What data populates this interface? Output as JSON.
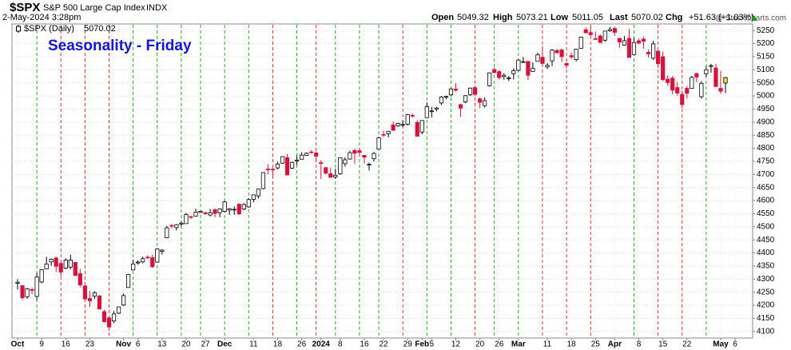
{
  "chart_data": {
    "type": "candlestick",
    "symbol": "$SPX",
    "name": "S&P 500 Large Cap Index",
    "exchange": "INDX",
    "timestamp": "2-May-2024 3:28pm",
    "watermark": "@ StockCharts.com",
    "title": "Seasonality - Friday",
    "legend_label": "$SPX (Daily)",
    "header_labels": [
      "Open",
      "High",
      "Low",
      "Last",
      "Chg"
    ],
    "change": "+51.63 (+1.03%)",
    "x": [
      "Oct 2",
      "Oct 3",
      "Oct 4",
      "Oct 5",
      "Oct 6",
      "Oct 9",
      "Oct 10",
      "Oct 11",
      "Oct 12",
      "Oct 13",
      "Oct 16",
      "Oct 17",
      "Oct 18",
      "Oct 19",
      "Oct 20",
      "Oct 23",
      "Oct 24",
      "Oct 25",
      "Oct 26",
      "Oct 27",
      "Oct 30",
      "Oct 31",
      "Nov 1",
      "Nov 2",
      "Nov 3",
      "Nov 6",
      "Nov 7",
      "Nov 8",
      "Nov 9",
      "Nov 10",
      "Nov 13",
      "Nov 14",
      "Nov 15",
      "Nov 16",
      "Nov 17",
      "Nov 20",
      "Nov 21",
      "Nov 22",
      "Nov 24",
      "Nov 27",
      "Nov 28",
      "Nov 29",
      "Nov 30",
      "Dec 1",
      "Dec 4",
      "Dec 5",
      "Dec 6",
      "Dec 7",
      "Dec 8",
      "Dec 11",
      "Dec 12",
      "Dec 13",
      "Dec 14",
      "Dec 15",
      "Dec 18",
      "Dec 19",
      "Dec 20",
      "Dec 21",
      "Dec 22",
      "Dec 26",
      "Dec 27",
      "Dec 28",
      "Dec 29",
      "Jan 2",
      "Jan 3",
      "Jan 4",
      "Jan 5",
      "Jan 8",
      "Jan 9",
      "Jan 10",
      "Jan 11",
      "Jan 12",
      "Jan 16",
      "Jan 17",
      "Jan 18",
      "Jan 19",
      "Jan 22",
      "Jan 23",
      "Jan 24",
      "Jan 25",
      "Jan 26",
      "Jan 29",
      "Jan 30",
      "Jan 31",
      "Feb 1",
      "Feb 2",
      "Feb 5",
      "Feb 6",
      "Feb 7",
      "Feb 8",
      "Feb 9",
      "Feb 12",
      "Feb 13",
      "Feb 14",
      "Feb 15",
      "Feb 16",
      "Feb 20",
      "Feb 21",
      "Feb 22",
      "Feb 23",
      "Feb 26",
      "Feb 27",
      "Feb 28",
      "Feb 29",
      "Mar 1",
      "Mar 4",
      "Mar 5",
      "Mar 6",
      "Mar 7",
      "Mar 8",
      "Mar 11",
      "Mar 12",
      "Mar 13",
      "Mar 14",
      "Mar 15",
      "Mar 18",
      "Mar 19",
      "Mar 20",
      "Mar 21",
      "Mar 22",
      "Mar 25",
      "Mar 26",
      "Mar 27",
      "Mar 28",
      "Apr 1",
      "Apr 2",
      "Apr 3",
      "Apr 4",
      "Apr 5",
      "Apr 8",
      "Apr 9",
      "Apr 10",
      "Apr 11",
      "Apr 12",
      "Apr 15",
      "Apr 16",
      "Apr 17",
      "Apr 18",
      "Apr 19",
      "Apr 22",
      "Apr 23",
      "Apr 24",
      "Apr 25",
      "Apr 26",
      "Apr 29",
      "Apr 30",
      "May 1",
      "May 2"
    ],
    "open": [
      4284,
      4275,
      4233,
      4260,
      4234,
      4289,
      4339,
      4366,
      4381,
      4360,
      4342,
      4346,
      4364,
      4321,
      4274,
      4226,
      4235,
      4236,
      4176,
      4152,
      4140,
      4170,
      4201,
      4268,
      4335,
      4364,
      4366,
      4384,
      4382,
      4365,
      4406,
      4458,
      4505,
      4497,
      4510,
      4512,
      4539,
      4541,
      4555,
      4554,
      4545,
      4565,
      4554,
      4559,
      4564,
      4566,
      4586,
      4568,
      4576,
      4605,
      4618,
      4646,
      4721,
      4720,
      4725,
      4743,
      4764,
      4724,
      4754,
      4758,
      4773,
      4786,
      4782,
      4745,
      4726,
      4703,
      4690,
      4703,
      4741,
      4759,
      4792,
      4791,
      4773,
      4739,
      4760,
      4797,
      4853,
      4856,
      4889,
      4886,
      4888,
      4892,
      4926,
      4899,
      4862,
      4917,
      4942,
      4950,
      4973,
      4996,
      5004,
      5026,
      4967,
      4977,
      5004,
      5032,
      4989,
      4963,
      5039,
      5101,
      5093,
      5074,
      5068,
      5085,
      5098,
      5131,
      5132,
      5094,
      5132,
      5148,
      5111,
      5134,
      5174,
      5176,
      5124,
      5154,
      5139,
      5182,
      5253,
      5242,
      5219,
      5229,
      5213,
      5249,
      5258,
      5220,
      5194,
      5220,
      5158,
      5211,
      5217,
      5167,
      5144,
      5171,
      5150,
      5064,
      5068,
      5032,
      5006,
      5029,
      5029,
      5085,
      4997,
      5085,
      5114,
      5107,
      5029,
      5049.32
    ],
    "high": [
      4300,
      4277,
      4266,
      4268,
      4324,
      4338,
      4385,
      4379,
      4385,
      4367,
      4380,
      4393,
      4366,
      4339,
      4277,
      4255,
      4254,
      4239,
      4183,
      4156,
      4178,
      4194,
      4245,
      4320,
      4373,
      4372,
      4386,
      4391,
      4393,
      4418,
      4414,
      4504,
      4512,
      4511,
      4521,
      4553,
      4542,
      4569,
      4560,
      4557,
      4568,
      4570,
      4570,
      4599,
      4572,
      4578,
      4590,
      4590,
      4610,
      4623,
      4645,
      4709,
      4739,
      4726,
      4749,
      4769,
      4778,
      4749,
      4772,
      4785,
      4784,
      4793,
      4788,
      4755,
      4729,
      4726,
      4722,
      4765,
      4766,
      4791,
      4798,
      4802,
      4773,
      4745,
      4786,
      4843,
      4868,
      4866,
      4903,
      4898,
      4906,
      4931,
      4932,
      4907,
      4907,
      4976,
      4958,
      4958,
      5000,
      5001,
      5030,
      5049,
      4970,
      5003,
      5032,
      5039,
      4994,
      4994,
      5090,
      5108,
      5098,
      5087,
      5076,
      5105,
      5141,
      5149,
      5133,
      5128,
      5165,
      5190,
      5125,
      5179,
      5179,
      5180,
      5128,
      5166,
      5180,
      5227,
      5262,
      5264,
      5246,
      5235,
      5249,
      5264,
      5264,
      5221,
      5229,
      5256,
      5222,
      5219,
      5225,
      5178,
      5211,
      5175,
      5169,
      5079,
      5077,
      5052,
      5020,
      5038,
      5076,
      5089,
      5057,
      5114,
      5123,
      5123,
      5096,
      5073.21
    ],
    "low": [
      4260,
      4220,
      4225,
      4242,
      4220,
      4284,
      4339,
      4351,
      4327,
      4311,
      4338,
      4338,
      4312,
      4269,
      4223,
      4194,
      4224,
      4185,
      4135,
      4103,
      4132,
      4167,
      4197,
      4268,
      4335,
      4355,
      4360,
      4378,
      4344,
      4363,
      4394,
      4456,
      4495,
      4486,
      4502,
      4512,
      4530,
      4540,
      4553,
      4545,
      4540,
      4537,
      4537,
      4554,
      4546,
      4546,
      4546,
      4563,
      4573,
      4594,
      4608,
      4643,
      4701,
      4689,
      4719,
      4741,
      4697,
      4721,
      4736,
      4758,
      4772,
      4780,
      4751,
      4683,
      4699,
      4687,
      4683,
      4699,
      4730,
      4756,
      4740,
      4768,
      4742,
      4715,
      4749,
      4797,
      4844,
      4842,
      4865,
      4882,
      4881,
      4887,
      4917,
      4845,
      4853,
      4917,
      4918,
      4941,
      4965,
      4987,
      4998,
      5016,
      4920,
      4972,
      5000,
      4998,
      4954,
      4956,
      5036,
      5087,
      5063,
      5062,
      5057,
      5063,
      5094,
      5128,
      5061,
      5092,
      5132,
      5118,
      5103,
      5114,
      5161,
      5130,
      5105,
      5142,
      5132,
      5181,
      5240,
      5226,
      5215,
      5203,
      5207,
      5245,
      5230,
      5184,
      5192,
      5146,
      5158,
      5198,
      5180,
      5146,
      5138,
      5107,
      5057,
      5039,
      5007,
      5001,
      4953,
      4990,
      5028,
      5053,
      4990,
      5073,
      5089,
      5035,
      5008,
      5011.05
    ],
    "close": [
      4288,
      4229,
      4263,
      4258,
      4308,
      4336,
      4358,
      4376,
      4349,
      4327,
      4373,
      4373,
      4314,
      4278,
      4224,
      4217,
      4248,
      4186,
      4137,
      4117,
      4167,
      4194,
      4237,
      4318,
      4358,
      4365,
      4378,
      4383,
      4347,
      4415,
      4411,
      4496,
      4502,
      4508,
      4514,
      4547,
      4538,
      4556,
      4559,
      4550,
      4554,
      4551,
      4568,
      4595,
      4569,
      4567,
      4549,
      4585,
      4604,
      4622,
      4644,
      4707,
      4720,
      4719,
      4740,
      4768,
      4698,
      4746,
      4755,
      4774,
      4781,
      4783,
      4770,
      4743,
      4705,
      4689,
      4697,
      4764,
      4756,
      4783,
      4781,
      4784,
      4766,
      4739,
      4780,
      4840,
      4850,
      4865,
      4869,
      4895,
      4891,
      4928,
      4925,
      4846,
      4906,
      4959,
      4943,
      4954,
      4996,
      4998,
      5027,
      5022,
      4953,
      5001,
      5030,
      5006,
      4976,
      4982,
      5088,
      5089,
      5070,
      5079,
      5069,
      5096,
      5137,
      5131,
      5079,
      5105,
      5157,
      5124,
      5117,
      5175,
      5165,
      5150,
      5117,
      5149,
      5179,
      5225,
      5241,
      5234,
      5218,
      5204,
      5248,
      5254,
      5243,
      5206,
      5211,
      5147,
      5204,
      5202,
      5209,
      5161,
      5199,
      5123,
      5062,
      5051,
      5022,
      5011,
      4967,
      5010,
      5071,
      5072,
      5048,
      5100,
      5116,
      5036,
      5018,
      5070.02
    ],
    "ylim": [
      4075,
      5275
    ],
    "yticks": [
      4100,
      4150,
      4200,
      4250,
      4300,
      4350,
      4400,
      4450,
      4500,
      4550,
      4600,
      4650,
      4700,
      4750,
      4800,
      4850,
      4900,
      4950,
      5000,
      5050,
      5100,
      5150,
      5200,
      5250
    ],
    "xticks": [
      {
        "value": "Oct 2",
        "label": "Oct"
      },
      {
        "value": "Oct 9",
        "label": "9"
      },
      {
        "value": "Oct 16",
        "label": "16"
      },
      {
        "value": "Oct 23",
        "label": "23"
      },
      {
        "value": "Nov 1",
        "label": "Nov"
      },
      {
        "value": "Nov 6",
        "label": "6"
      },
      {
        "value": "Nov 13",
        "label": "13"
      },
      {
        "value": "Nov 20",
        "label": "20"
      },
      {
        "value": "Nov 27",
        "label": "27"
      },
      {
        "value": "Dec 1",
        "label": "Dec"
      },
      {
        "value": "Dec 11",
        "label": "11"
      },
      {
        "value": "Dec 18",
        "label": "18"
      },
      {
        "value": "Dec 26",
        "label": "26"
      },
      {
        "value": "Jan 2",
        "label": "2024"
      },
      {
        "value": "Jan 8",
        "label": "8"
      },
      {
        "value": "Jan 16",
        "label": "16"
      },
      {
        "value": "Jan 22",
        "label": "22"
      },
      {
        "value": "Jan 29",
        "label": "29"
      },
      {
        "value": "Feb 1",
        "label": "Feb"
      },
      {
        "value": "Feb 5",
        "label": "5"
      },
      {
        "value": "Feb 12",
        "label": "12"
      },
      {
        "value": "Feb 20",
        "label": "20"
      },
      {
        "value": "Feb 26",
        "label": "26"
      },
      {
        "value": "Mar 1",
        "label": "Mar"
      },
      {
        "value": "Mar 11",
        "label": "11"
      },
      {
        "value": "Mar 18",
        "label": "18"
      },
      {
        "value": "Mar 25",
        "label": "25"
      },
      {
        "value": "Apr 1",
        "label": "Apr"
      },
      {
        "value": "Apr 8",
        "label": "8"
      },
      {
        "value": "Apr 15",
        "label": "15"
      },
      {
        "value": "Apr 22",
        "label": "22"
      },
      {
        "value": "May 1",
        "label": "May"
      },
      {
        "value": "May 6",
        "label": "6"
      }
    ],
    "up_color": "#ffffff",
    "down_color": "#d4143c",
    "last_color": "#f2e33a",
    "friday_up_color": "#1a9a1a",
    "friday_down_color": "#d42020",
    "grid": true
  }
}
